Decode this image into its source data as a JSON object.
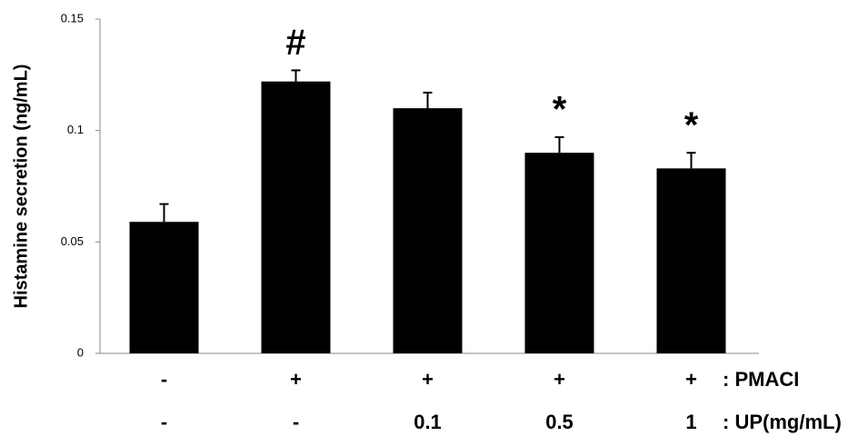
{
  "chart_data": {
    "type": "bar",
    "y_label": "Histamine secretion (ng/mL)",
    "category_rows": [
      {
        "name": ": PMACI",
        "labels": [
          "-",
          "+",
          "+",
          "+",
          "+"
        ]
      },
      {
        "name": ": UP(mg/mL)",
        "labels": [
          "-",
          "-",
          "0.1",
          "0.5",
          "1"
        ]
      }
    ],
    "values": [
      0.059,
      0.122,
      0.11,
      0.09,
      0.083
    ],
    "errors": [
      0.008,
      0.005,
      0.007,
      0.007,
      0.007
    ],
    "annotations": [
      null,
      "#",
      null,
      "*",
      "*"
    ],
    "color": "#000000",
    "ylim": [
      0,
      0.15
    ],
    "yticks": [
      0,
      0.05,
      0.1,
      0.15
    ],
    "grid": false
  }
}
